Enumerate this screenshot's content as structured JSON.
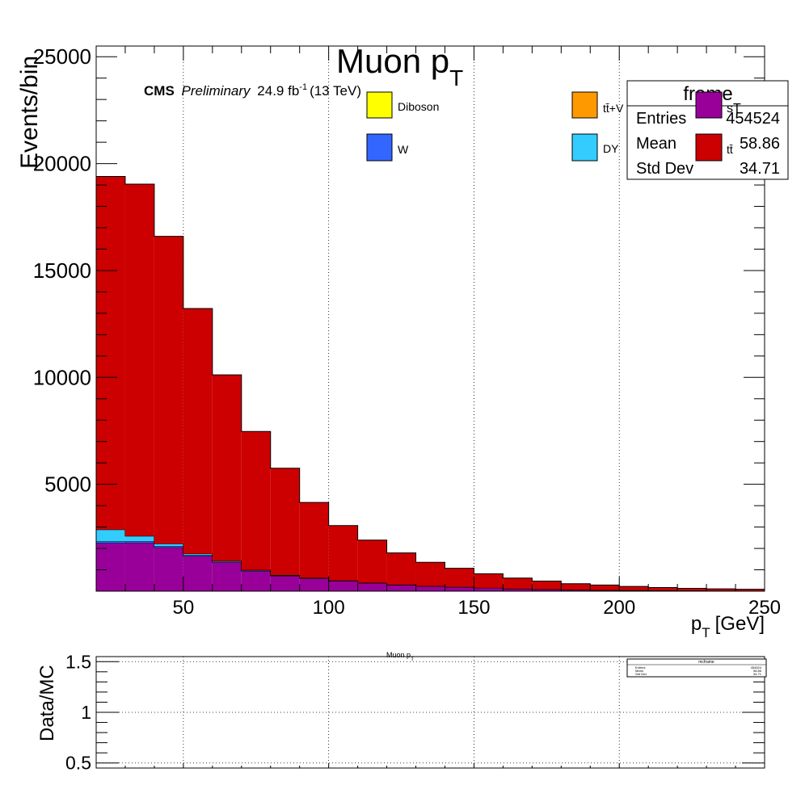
{
  "chart_data": [
    {
      "type": "bar",
      "stacked": true,
      "title": "Muon p",
      "title_sub": "T",
      "xlabel": "p",
      "xlabel_sub": "T",
      "xlabel_unit": "[GeV]",
      "ylabel": "Events/bin",
      "xlim": [
        20,
        250
      ],
      "ylim": [
        0,
        25500
      ],
      "xticks": [
        50,
        100,
        150,
        200,
        250
      ],
      "yticks": [
        5000,
        10000,
        15000,
        20000,
        25000
      ],
      "grid_x": true,
      "grid_y": false,
      "bin_edges": [
        20,
        30,
        40,
        50,
        60,
        70,
        80,
        90,
        100,
        110,
        120,
        130,
        140,
        150,
        160,
        170,
        180,
        190,
        200,
        210,
        220,
        230,
        240,
        250
      ],
      "series": [
        {
          "name": "sT",
          "color": "#990099",
          "values": [
            2250,
            2270,
            2050,
            1650,
            1350,
            950,
            720,
            600,
            480,
            380,
            290,
            230,
            190,
            150,
            110,
            85,
            65,
            50,
            42,
            35,
            28,
            22,
            18
          ]
        },
        {
          "name": "W",
          "color": "#3366ff",
          "values": [
            80,
            70,
            60,
            40,
            30,
            20,
            15,
            10,
            8,
            6,
            5,
            4,
            3,
            3,
            2,
            2,
            1,
            1,
            1,
            1,
            1,
            1,
            1
          ]
        },
        {
          "name": "DY",
          "color": "#33ccff",
          "values": [
            550,
            240,
            110,
            60,
            35,
            25,
            20,
            15,
            12,
            10,
            8,
            6,
            5,
            4,
            3,
            3,
            2,
            2,
            2,
            1,
            1,
            1,
            1
          ]
        },
        {
          "name": "tt̄",
          "color": "#cc0000",
          "values": [
            16520,
            16460,
            14380,
            11470,
            8705,
            6475,
            4995,
            3525,
            2570,
            1994,
            1487,
            1110,
            872,
            653,
            500,
            380,
            282,
            237,
            175,
            133,
            100,
            86,
            70
          ]
        }
      ],
      "legend": [
        {
          "label": "Diboson",
          "color": "#ffff00"
        },
        {
          "label": "tt̄+V",
          "color": "#ff9900"
        },
        {
          "label": "sT",
          "color": "#990099"
        },
        {
          "label": "W",
          "color": "#3366ff"
        },
        {
          "label": "DY",
          "color": "#33ccff"
        },
        {
          "label": "tt̄",
          "color": "#cc0000"
        }
      ],
      "annotation": {
        "experiment": "CMS",
        "status": "Preliminary",
        "lumi": "24.9 fb",
        "lumi_sup": "-1",
        "energy": "(13 TeV)"
      },
      "stats_box": {
        "title": "frame",
        "rows": [
          {
            "label": "Entries",
            "value": "454524"
          },
          {
            "label": "Mean",
            "value": "58.86"
          },
          {
            "label": "Std Dev",
            "value": "34.71"
          }
        ]
      }
    },
    {
      "type": "line",
      "title": "Muon p",
      "title_sub": "T",
      "ylabel": "Data/MC",
      "xlim": [
        20,
        250
      ],
      "ylim": [
        0.45,
        1.55
      ],
      "yticks": [
        0.5,
        1,
        1.5
      ],
      "ytick_labels": [
        "0.5",
        "1",
        "1.5"
      ],
      "grid_x": true,
      "grid_y": true,
      "series": [],
      "stats_box": {
        "title": "mcframe",
        "rows": [
          {
            "label": "Entries",
            "value": "454524"
          },
          {
            "label": "Mean",
            "value": "58.86"
          },
          {
            "label": "Std Dev",
            "value": "34.71"
          }
        ]
      }
    }
  ]
}
